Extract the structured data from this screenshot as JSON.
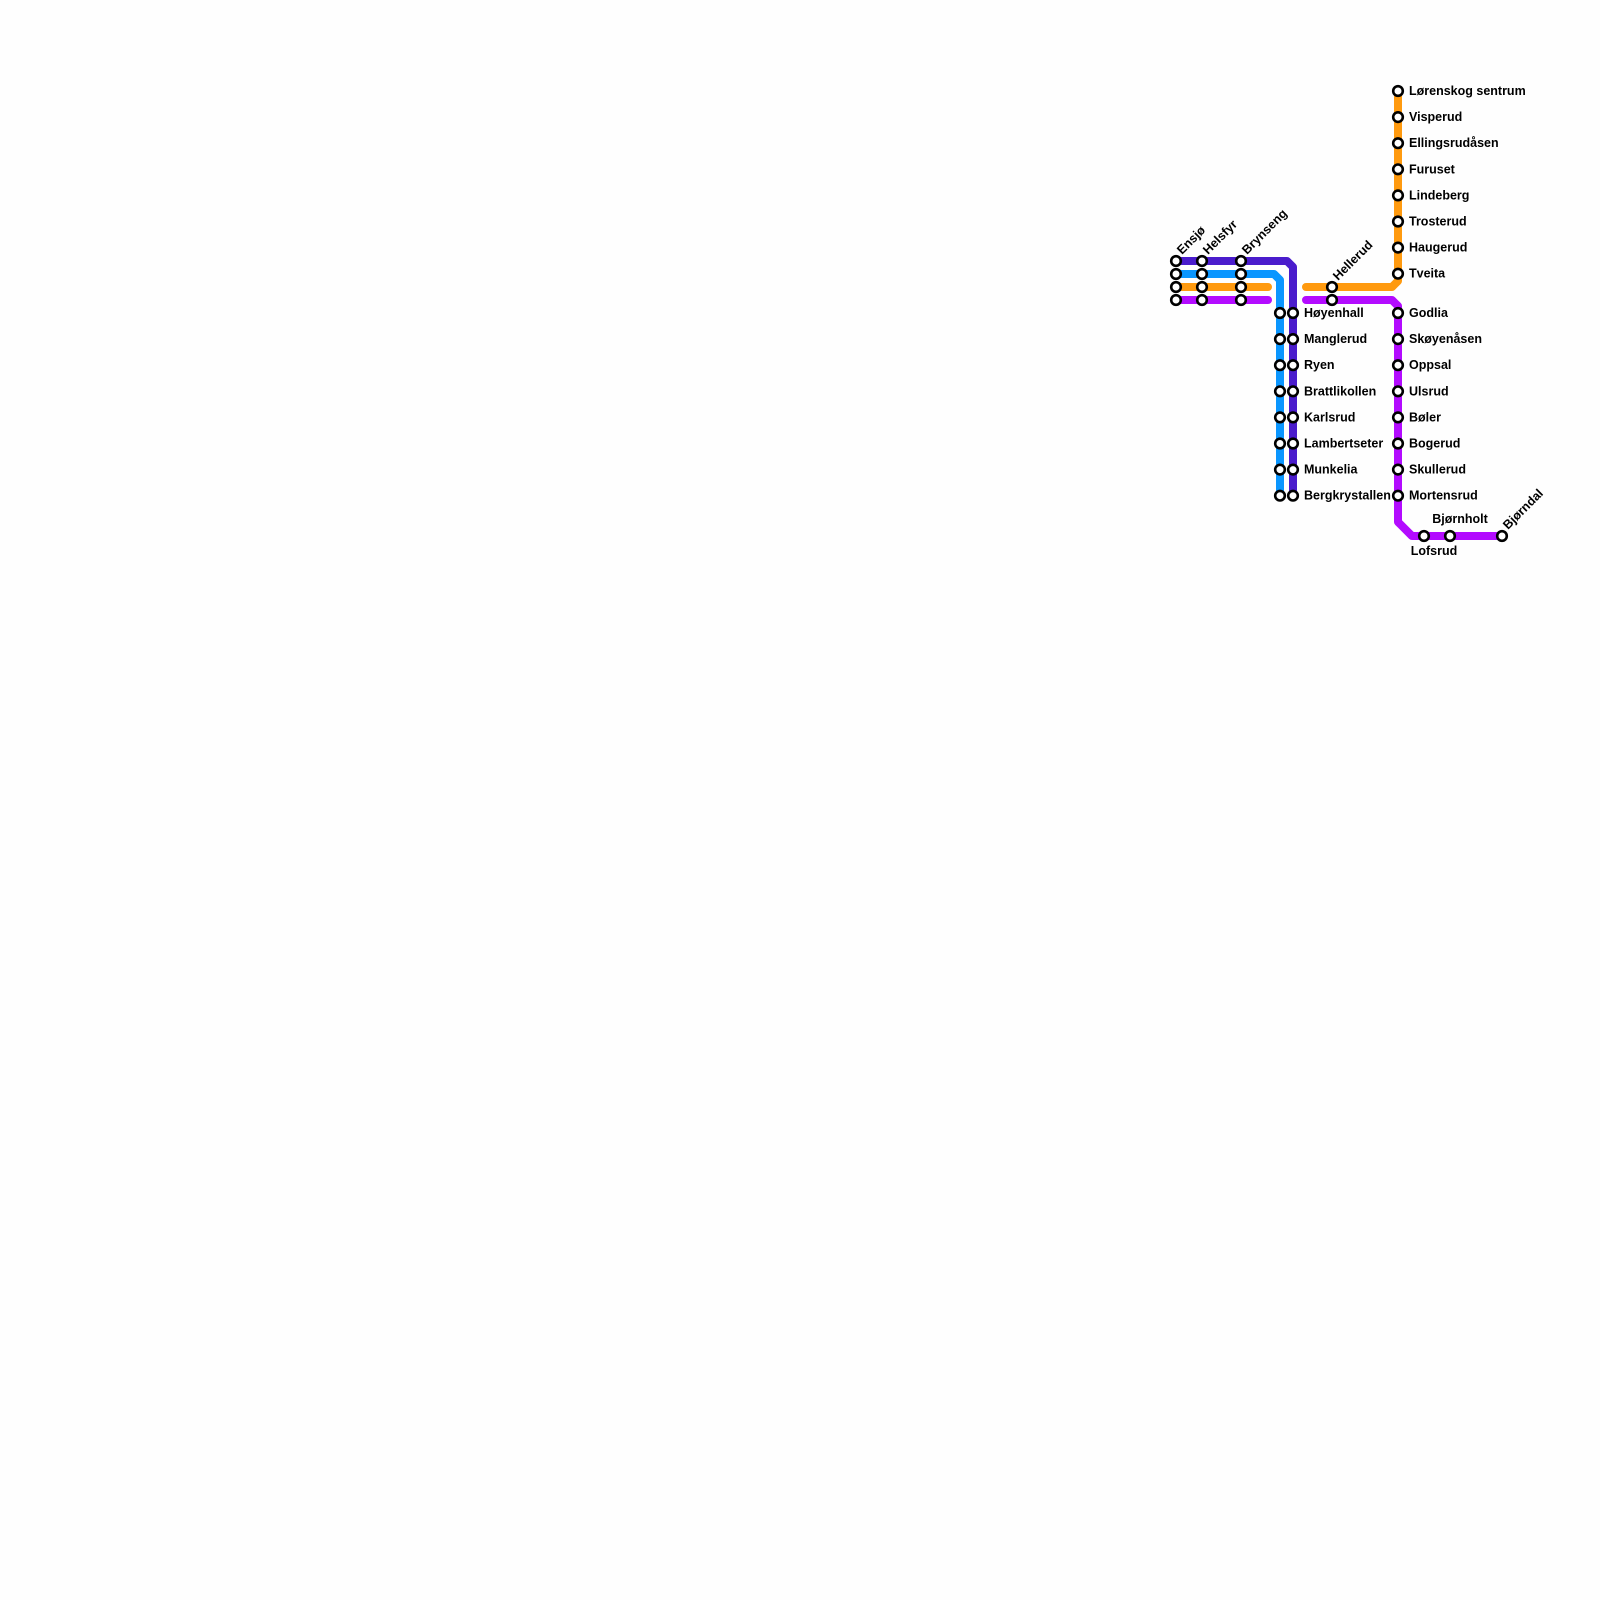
{
  "lines": [
    {
      "id": "dark-purple",
      "color": "#4a1ccc"
    },
    {
      "id": "blue",
      "color": "#0a96ff"
    },
    {
      "id": "orange",
      "color": "#ff9a0f"
    },
    {
      "id": "purple",
      "color": "#b30bff"
    }
  ],
  "stations": {
    "ensjo": "Ensjø",
    "helsfyr": "Helsfyr",
    "brynseng": "Brynseng",
    "hellerud": "Hellerud",
    "hoyenhall": "Høyenhall",
    "manglerud": "Manglerud",
    "ryen": "Ryen",
    "brattlikollen": "Brattlikollen",
    "karlsrud": "Karlsrud",
    "lambertseter": "Lambertseter",
    "munkelia": "Munkelia",
    "bergkrystallen": "Bergkrystallen",
    "lorenskog": "Lørenskog sentrum",
    "visperud": "Visperud",
    "ellingsrudasen": "Ellingsrudåsen",
    "furuset": "Furuset",
    "lindeberg": "Lindeberg",
    "trosterud": "Trosterud",
    "haugerud": "Haugerud",
    "tveita": "Tveita",
    "godlia": "Godlia",
    "skoyenasen": "Skøyenåsen",
    "oppsal": "Oppsal",
    "ulsrud": "Ulsrud",
    "boler": "Bøler",
    "bogerud": "Bogerud",
    "skullerud": "Skullerud",
    "mortensrud": "Mortensrud",
    "lofsrud": "Lofsrud",
    "bjornholt": "Bjørnholt",
    "bjorndal": "Bjørndal"
  }
}
